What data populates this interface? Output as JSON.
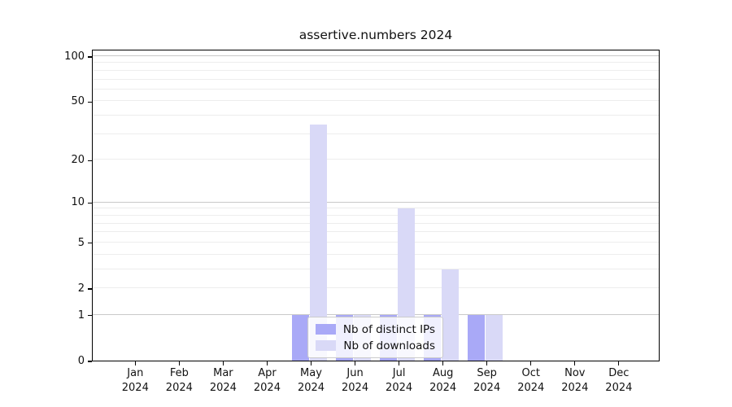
{
  "chart_data": {
    "type": "bar",
    "title": "assertive.numbers 2024",
    "x_months": [
      "Jan",
      "Feb",
      "Mar",
      "Apr",
      "May",
      "Jun",
      "Jul",
      "Aug",
      "Sep",
      "Oct",
      "Nov",
      "Dec"
    ],
    "x_year": "2024",
    "series": [
      {
        "name": "Nb of distinct IPs",
        "color": "#a9a9f7",
        "values": [
          0,
          0,
          0,
          0,
          1,
          1,
          1,
          1,
          1,
          0,
          0,
          0
        ]
      },
      {
        "name": "Nb of downloads",
        "color": "#d9d9f7",
        "values": [
          0,
          0,
          0,
          0,
          35,
          1,
          9,
          3,
          1,
          0,
          0,
          0
        ]
      }
    ],
    "y_ticks": [
      0,
      1,
      2,
      5,
      10,
      20,
      50,
      100
    ],
    "y_scale": "log1p",
    "ylim": [
      0,
      112
    ],
    "grid": "on",
    "legend_position": "lower center",
    "colors": {
      "background": "#ffffff",
      "axis": "#000000",
      "text": "#111111",
      "grid_major": "#c9c9c9",
      "grid_minor": "#ededed",
      "legend_border": "#cccccc"
    }
  }
}
